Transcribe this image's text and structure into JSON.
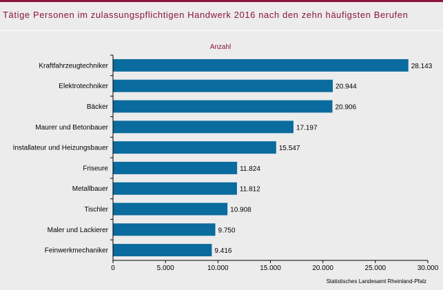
{
  "title": "Tätige Personen im zulassungspflichtigen Handwerk 2016 nach den zehn häufigsten Berufen",
  "colors": {
    "bar": "#0a6b9e",
    "title": "#8a1538",
    "background": "#ececec"
  },
  "chart_data": {
    "type": "bar",
    "orientation": "horizontal",
    "unit_label": "Anzahl",
    "categories": [
      "Kraftfahrzeugtechniker",
      "Elektrotechniker",
      "Bäcker",
      "Maurer und Betonbauer",
      "Installateur und Heizungsbauer",
      "Friseure",
      "Metallbauer",
      "Tischler",
      "Maler und Lackierer",
      "Feinwerkmechaniker"
    ],
    "values": [
      28143,
      20944,
      20906,
      17197,
      15547,
      11824,
      11812,
      10908,
      9750,
      9416
    ],
    "value_labels": [
      "28.143",
      "20.944",
      "20.906",
      "17.197",
      "15.547",
      "11.824",
      "11.812",
      "10.908",
      "9.750",
      "9.416"
    ],
    "xlim": [
      0,
      30000
    ],
    "xticks": [
      0,
      5000,
      10000,
      15000,
      20000,
      25000,
      30000
    ],
    "xtick_labels": [
      "0",
      "5.000",
      "10.000",
      "15.000",
      "20.000",
      "25.000",
      "30.000"
    ],
    "grid": false,
    "legend": "none"
  },
  "source": "Statistisches Landesamt Rheinland-Pfalz"
}
